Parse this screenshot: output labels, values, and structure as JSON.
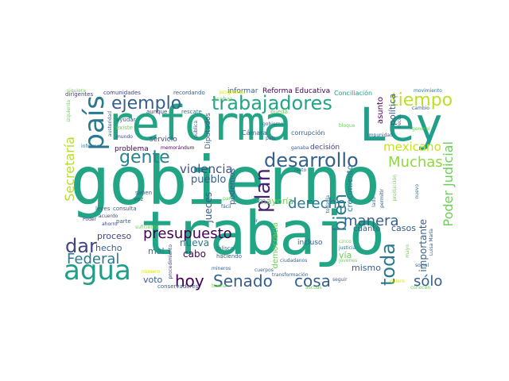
{
  "colors": {
    "teal": "#21a585",
    "green": "#2cb07f",
    "lime": "#a6d93a",
    "yellow": "#d5e21a",
    "blue": "#355f8d",
    "indigo": "#3b528b",
    "purple": "#482475",
    "darkpurple": "#440154",
    "sea": "#1f9e89",
    "cyan": "#26828e",
    "lightgreen": "#6ece58",
    "slate": "#414487"
  },
  "words": {
    "gobierno": "gobierno",
    "trabajo": "trabajo",
    "reforma": "reforma",
    "ley": "Ley",
    "agua": "agua",
    "pais": "país",
    "ejemplo": "ejemplo",
    "trabajadores": "trabajadores",
    "tiempo": "tiempo",
    "desarrollo": "desarrollo",
    "gente": "gente",
    "muchas": "Muchas",
    "mexicano": "mexicano",
    "secretaria": "Secretaría",
    "plan": "plan",
    "presupuesto": "presupuesto",
    "violencia": "violencia",
    "pueblo": "pueblo",
    "bien": "bien",
    "manera": "manera",
    "poder_judicial": "Poder Judicial",
    "derecho": "derecho",
    "dar": "dar",
    "federal": "Federal",
    "senado": "Senado",
    "cosa": "cosa",
    "hoy": "hoy",
    "toda": "toda",
    "solo": "sólo",
    "nueva": "nueva",
    "mayoria": "mayoría",
    "proceso": "proceso",
    "hecho": "hecho",
    "cabo": "cabo",
    "voto": "voto",
    "mal": "mal",
    "mismo": "mismo",
    "casos": "casos",
    "cuanto": "cuanto",
    "via": "vía",
    "incluso": "incluso",
    "democracia": "democracia",
    "crecimiento": "crecimiento",
    "importante": "importante",
    "politica": "política",
    "asunto": "asunto",
    "jueces": "jueces",
    "podemos": "podemos",
    "servicio": "servicio",
    "problema": "problema",
    "reforma_educativa": "Reforma Educativa",
    "informar": "informar",
    "diputados": "Diputados",
    "camara": "Cámara",
    "corrupcion": "corrupción",
    "decision": "decisión",
    "conciliacion": "Conciliación",
    "comunidades": "comunidades",
    "recordando": "recordando",
    "dirigentes": "dirigentes",
    "izquierda": "izquierda",
    "programas": "programas",
    "acabar": "acabar",
    "aunque": "aunque",
    "rescate": "rescate",
    "ayudar": "ayudar",
    "austeridad": "austeridad",
    "existe": "existe",
    "mundo": "mundo",
    "informe": "informe",
    "memorandum": "memorándum",
    "consulta": "consulta",
    "saben": "saben",
    "vez": "vez",
    "leyes": "leyes",
    "acuerdo": "acuerdo",
    "parte": "parte",
    "suficiente": "suficiente",
    "ahorro": "ahorro",
    "poder": "Poder",
    "numero": "número",
    "jalisco": "Jalisco",
    "haciendo": "haciendo",
    "mineros": "mineros",
    "procedimiento": "procedimiento",
    "conservadores": "conservadores",
    "buena": "buena",
    "transformacion": "transformación",
    "seguir": "seguir",
    "ascuas": "ascuas",
    "cinco": "cinco",
    "justicia": "justicia",
    "jovenes": "jóvenes",
    "quiero": "quiero",
    "social": "social",
    "conocen": "conocen",
    "mayo": "mayo",
    "luisa_maria": "Luisa María",
    "nuevo": "nuevo",
    "produccion": "producción",
    "lado": "lado",
    "permitir": "permitir",
    "todavia": "todavía",
    "ciudadanos": "ciudadanos",
    "resto": "resto",
    "ganaba": "ganaba",
    "impunidad": "impunidad",
    "general": "general",
    "cambio": "cambio",
    "movimiento": "movimiento",
    "siguiera": "siguiera",
    "pueda": "pueda",
    "publica": "pública",
    "veces": "veces",
    "bloque": "bloque",
    "pais2": "país",
    "facil": "fácil",
    "ir": "ir",
    "par": "par",
    "gobierno_small": "gobierno",
    "cuerpos": "cuerpos"
  }
}
